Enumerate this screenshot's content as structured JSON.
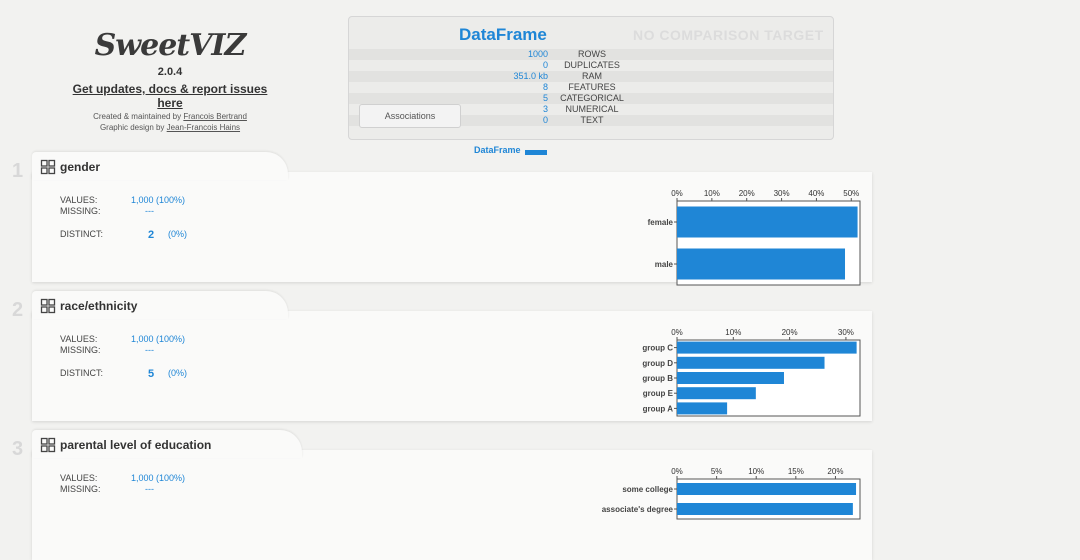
{
  "logo": {
    "title": "SweetVIZ",
    "version": "2.0.4",
    "updates_link": "Get updates, docs & report issues here",
    "created_prefix": "Created & maintained by ",
    "created_name": "Francois Bertrand",
    "design_prefix": "Graphic design by ",
    "design_name": "Jean-Francois Hains"
  },
  "summary": {
    "title": "DataFrame",
    "no_target": "NO COMPARISON TARGET",
    "associations_button": "Associations",
    "legend_label": "DataFrame",
    "rows": [
      {
        "value": "1000",
        "label": "ROWS"
      },
      {
        "value": "0",
        "label": "DUPLICATES"
      },
      {
        "value": "351.0 kb",
        "label": "RAM"
      },
      {
        "value": "8",
        "label": "FEATURES"
      },
      {
        "value": "5",
        "label": "CATEGORICAL"
      },
      {
        "value": "3",
        "label": "NUMERICAL"
      },
      {
        "value": "0",
        "label": "TEXT"
      }
    ]
  },
  "features": [
    {
      "number": "1",
      "name": "gender",
      "values_label": "VALUES:",
      "values": "1,000 (100%)",
      "missing_label": "MISSING:",
      "missing": "---",
      "distinct_label": "DISTINCT:",
      "distinct": "2",
      "distinct_pct": "(0%)"
    },
    {
      "number": "2",
      "name": "race/ethnicity",
      "values_label": "VALUES:",
      "values": "1,000 (100%)",
      "missing_label": "MISSING:",
      "missing": "---",
      "distinct_label": "DISTINCT:",
      "distinct": "5",
      "distinct_pct": "(0%)"
    },
    {
      "number": "3",
      "name": "parental level of education",
      "values_label": "VALUES:",
      "values": "1,000 (100%)",
      "missing_label": "MISSING:",
      "missing": "---"
    }
  ],
  "colors": {
    "accent": "#1f86d6",
    "bar": "#1f86d6"
  },
  "chart_data": [
    {
      "type": "bar",
      "orientation": "horizontal",
      "categories": [
        "female",
        "male"
      ],
      "values": [
        51.8,
        48.2
      ],
      "xlim": [
        0,
        52.5
      ],
      "tick_labels": [
        "0%",
        "10%",
        "20%",
        "30%",
        "40%",
        "50%"
      ],
      "tick_values": [
        0,
        10,
        20,
        30,
        40,
        50
      ]
    },
    {
      "type": "bar",
      "orientation": "horizontal",
      "categories": [
        "group C",
        "group D",
        "group B",
        "group E",
        "group A"
      ],
      "values": [
        31.9,
        26.2,
        19.0,
        14.0,
        8.9
      ],
      "xlim": [
        0,
        32.5
      ],
      "tick_labels": [
        "0%",
        "10%",
        "20%",
        "30%"
      ],
      "tick_values": [
        0,
        10,
        20,
        30
      ]
    },
    {
      "type": "bar",
      "orientation": "horizontal",
      "categories": [
        "some college",
        "associate's degree"
      ],
      "values": [
        22.6,
        22.2
      ],
      "xlim": [
        0,
        23.1
      ],
      "tick_labels": [
        "0%",
        "5%",
        "10%",
        "15%",
        "20%"
      ],
      "tick_values": [
        0,
        5,
        10,
        15,
        20
      ]
    }
  ]
}
